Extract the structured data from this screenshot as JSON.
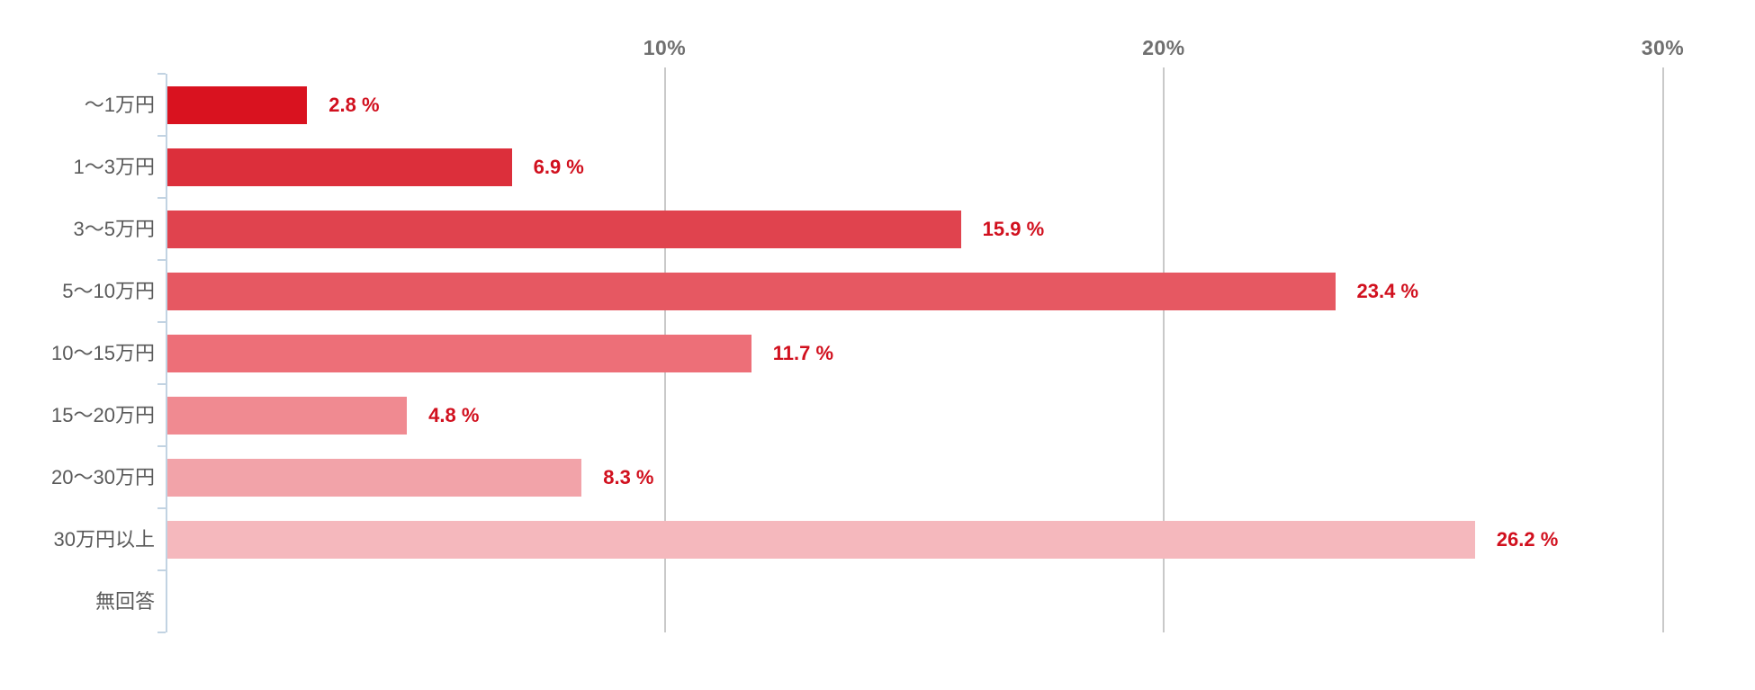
{
  "chart_data": {
    "type": "bar",
    "orientation": "horizontal",
    "title": "",
    "categories": [
      "～1万円",
      "1～3万円",
      "3～5万円",
      "5～10万円",
      "10～15万円",
      "15～20万円",
      "20～30万円",
      "30万円以上",
      "無回答"
    ],
    "values": [
      2.8,
      6.9,
      15.9,
      23.4,
      11.7,
      4.8,
      8.3,
      26.2,
      0
    ],
    "value_labels": [
      "2.8 %",
      "6.9 %",
      "15.9 %",
      "23.4 %",
      "11.7 %",
      "4.8 %",
      "8.3 %",
      "26.2 %",
      ""
    ],
    "bar_colors": [
      "#d9121f",
      "#dc2f3b",
      "#e0434e",
      "#e65862",
      "#ed6f78",
      "#f08a91",
      "#f2a3a9",
      "#f5b8bd",
      null
    ],
    "x_axis": {
      "min": 0,
      "max": 30,
      "ticks": [
        10,
        20,
        30
      ],
      "tick_labels": [
        "10%",
        "20%",
        "30%"
      ]
    },
    "grid": true,
    "legend": "none",
    "colors": {
      "value_label": "#d1101e",
      "category_label": "#595959",
      "axis_tick_label": "#6f6f6f",
      "gridline": "#c9c9c9",
      "axis_line": "#c2d3e2",
      "background": "#ffffff"
    }
  }
}
